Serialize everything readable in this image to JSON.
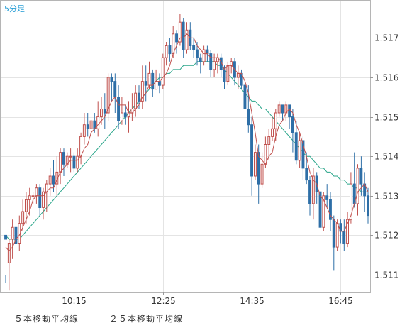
{
  "chart_data": {
    "type": "candlestick",
    "period_label": "5分足",
    "x_tick_labels": [
      "10:15",
      "12:25",
      "14:35",
      "16:45"
    ],
    "y_tick_labels": [
      "1.511",
      "1.512",
      "1.513",
      "1.514",
      "1.515",
      "1.516",
      "1.517"
    ],
    "ylim": [
      1.5106,
      1.5176
    ],
    "grid": true,
    "legend_position": "bottom-left",
    "colors": {
      "up": "#c0504d",
      "down": "#2e6fa7",
      "ma5": "#c0504d",
      "ma25": "#2aa58a"
    },
    "candles": [
      [
        1.512,
        1.5119,
        1.511,
        1.5108
      ],
      [
        1.5113,
        1.5118,
        1.5119,
        1.5106
      ],
      [
        1.5119,
        1.5122,
        1.5124,
        1.5114
      ],
      [
        1.5122,
        1.5118,
        1.5125,
        1.5116
      ],
      [
        1.5118,
        1.5123,
        1.5125,
        1.5116
      ],
      [
        1.5123,
        1.5126,
        1.5129,
        1.5121
      ],
      [
        1.5126,
        1.5129,
        1.5131,
        1.5123
      ],
      [
        1.5129,
        1.513,
        1.5132,
        1.5125
      ],
      [
        1.513,
        1.513,
        1.5131,
        1.5128
      ],
      [
        1.513,
        1.5132,
        1.5133,
        1.5128
      ],
      [
        1.5132,
        1.5127,
        1.5133,
        1.5125
      ],
      [
        1.5127,
        1.5131,
        1.5132,
        1.5124
      ],
      [
        1.5131,
        1.5133,
        1.5134,
        1.5126
      ],
      [
        1.5133,
        1.5135,
        1.5137,
        1.513
      ],
      [
        1.5135,
        1.5133,
        1.5139,
        1.5131
      ],
      [
        1.5133,
        1.5136,
        1.514,
        1.513
      ],
      [
        1.5136,
        1.5141,
        1.5142,
        1.5133
      ],
      [
        1.5141,
        1.5138,
        1.5142,
        1.5135
      ],
      [
        1.5138,
        1.514,
        1.5141,
        1.5137
      ],
      [
        1.514,
        1.514,
        1.5142,
        1.5136
      ],
      [
        1.514,
        1.5137,
        1.5141,
        1.5136
      ],
      [
        1.5137,
        1.514,
        1.5142,
        1.5136
      ],
      [
        1.514,
        1.5145,
        1.5146,
        1.5138
      ],
      [
        1.5145,
        1.5148,
        1.5151,
        1.5143
      ],
      [
        1.5148,
        1.5147,
        1.5151,
        1.5145
      ],
      [
        1.5147,
        1.5149,
        1.515,
        1.5145
      ],
      [
        1.5149,
        1.5147,
        1.5151,
        1.5146
      ],
      [
        1.5147,
        1.515,
        1.5154,
        1.5145
      ],
      [
        1.515,
        1.5152,
        1.5155,
        1.5148
      ],
      [
        1.5152,
        1.5151,
        1.5156,
        1.5147
      ],
      [
        1.5151,
        1.516,
        1.5161,
        1.5149
      ],
      [
        1.516,
        1.5159,
        1.5161,
        1.5154
      ],
      [
        1.5159,
        1.5155,
        1.5161,
        1.5151
      ],
      [
        1.5155,
        1.5149,
        1.5158,
        1.5147
      ],
      [
        1.5149,
        1.5151,
        1.5155,
        1.5148
      ],
      [
        1.5151,
        1.515,
        1.5153,
        1.5148
      ],
      [
        1.515,
        1.5151,
        1.5154,
        1.5146
      ],
      [
        1.5151,
        1.5152,
        1.5156,
        1.5149
      ],
      [
        1.5152,
        1.5156,
        1.5158,
        1.515
      ],
      [
        1.5156,
        1.5154,
        1.5158,
        1.5152
      ],
      [
        1.5154,
        1.5159,
        1.5163,
        1.5152
      ],
      [
        1.5159,
        1.5158,
        1.5163,
        1.5154
      ],
      [
        1.5158,
        1.5161,
        1.5164,
        1.5157
      ],
      [
        1.5161,
        1.5157,
        1.5162,
        1.5155
      ],
      [
        1.5157,
        1.5159,
        1.5162,
        1.5157
      ],
      [
        1.5159,
        1.5158,
        1.5161,
        1.5156
      ],
      [
        1.5158,
        1.5165,
        1.5166,
        1.5157
      ],
      [
        1.5165,
        1.5168,
        1.5169,
        1.5163
      ],
      [
        1.5168,
        1.5166,
        1.517,
        1.5164
      ],
      [
        1.5166,
        1.5171,
        1.5173,
        1.5165
      ],
      [
        1.5171,
        1.5169,
        1.5172,
        1.5166
      ],
      [
        1.5169,
        1.5174,
        1.5176,
        1.5168
      ],
      [
        1.5174,
        1.5167,
        1.5175,
        1.5165
      ],
      [
        1.5167,
        1.5172,
        1.5174,
        1.5166
      ],
      [
        1.5172,
        1.5168,
        1.5174,
        1.5167
      ],
      [
        1.5168,
        1.5167,
        1.517,
        1.5165
      ],
      [
        1.5167,
        1.5165,
        1.5169,
        1.5163
      ],
      [
        1.5165,
        1.5164,
        1.5166,
        1.5161
      ],
      [
        1.5164,
        1.5167,
        1.5168,
        1.5163
      ],
      [
        1.5167,
        1.5166,
        1.5168,
        1.5164
      ],
      [
        1.5166,
        1.5162,
        1.5167,
        1.516
      ],
      [
        1.5162,
        1.5164,
        1.5166,
        1.516
      ],
      [
        1.5164,
        1.5165,
        1.5166,
        1.5161
      ],
      [
        1.5165,
        1.5162,
        1.5166,
        1.516
      ],
      [
        1.5162,
        1.5159,
        1.5163,
        1.5157
      ],
      [
        1.5159,
        1.5163,
        1.5164,
        1.5158
      ],
      [
        1.5163,
        1.5164,
        1.5165,
        1.5161
      ],
      [
        1.5164,
        1.516,
        1.5165,
        1.5158
      ],
      [
        1.516,
        1.5161,
        1.5163,
        1.5157
      ],
      [
        1.5161,
        1.5158,
        1.5162,
        1.5157
      ],
      [
        1.5158,
        1.5152,
        1.5159,
        1.515
      ],
      [
        1.5152,
        1.5148,
        1.5158,
        1.5146
      ],
      [
        1.5148,
        1.5135,
        1.515,
        1.513
      ],
      [
        1.5135,
        1.5141,
        1.5143,
        1.5134
      ],
      [
        1.5141,
        1.5133,
        1.5143,
        1.5128
      ],
      [
        1.5133,
        1.5138,
        1.5141,
        1.5132
      ],
      [
        1.5138,
        1.5143,
        1.5145,
        1.5137
      ],
      [
        1.5143,
        1.5145,
        1.5147,
        1.5139
      ],
      [
        1.5145,
        1.5147,
        1.515,
        1.5144
      ],
      [
        1.5147,
        1.5151,
        1.5152,
        1.5144
      ],
      [
        1.5151,
        1.5153,
        1.5154,
        1.515
      ],
      [
        1.5153,
        1.5151,
        1.5153,
        1.5149
      ],
      [
        1.5151,
        1.5153,
        1.5154,
        1.5149
      ],
      [
        1.5153,
        1.515,
        1.5153,
        1.5147
      ],
      [
        1.515,
        1.5146,
        1.5152,
        1.5141
      ],
      [
        1.5146,
        1.5139,
        1.5149,
        1.5138
      ],
      [
        1.5139,
        1.5144,
        1.5146,
        1.5137
      ],
      [
        1.5144,
        1.5137,
        1.5145,
        1.5134
      ],
      [
        1.5137,
        1.5134,
        1.5141,
        1.5133
      ],
      [
        1.5134,
        1.5128,
        1.5135,
        1.5125
      ],
      [
        1.5128,
        1.5135,
        1.5137,
        1.5124
      ],
      [
        1.5135,
        1.5131,
        1.5136,
        1.5128
      ],
      [
        1.5131,
        1.5122,
        1.5133,
        1.5118
      ],
      [
        1.5122,
        1.513,
        1.5131,
        1.5121
      ],
      [
        1.513,
        1.5129,
        1.5133,
        1.5127
      ],
      [
        1.5129,
        1.5124,
        1.5131,
        1.5121
      ],
      [
        1.5124,
        1.5117,
        1.5125,
        1.5111
      ],
      [
        1.5117,
        1.5123,
        1.5124,
        1.5116
      ],
      [
        1.5123,
        1.5121,
        1.5124,
        1.5118
      ],
      [
        1.5121,
        1.5118,
        1.5124,
        1.5116
      ],
      [
        1.5118,
        1.5124,
        1.5126,
        1.5117
      ],
      [
        1.5124,
        1.5133,
        1.5136,
        1.5123
      ],
      [
        1.5133,
        1.5128,
        1.5141,
        1.5127
      ],
      [
        1.5128,
        1.5137,
        1.5138,
        1.5125
      ],
      [
        1.5137,
        1.5133,
        1.514,
        1.513
      ],
      [
        1.5133,
        1.513,
        1.5136,
        1.5126
      ],
      [
        1.513,
        1.5125,
        1.5132,
        1.5123
      ]
    ],
    "ma5": [
      1.5117,
      1.5116,
      1.5117,
      1.5119,
      1.512,
      1.5122,
      1.5124,
      1.5126,
      1.5129,
      1.513,
      1.513,
      1.513,
      1.5131,
      1.5132,
      1.5132,
      1.5134,
      1.5136,
      1.5137,
      1.5138,
      1.5139,
      1.5139,
      1.5139,
      1.514,
      1.5142,
      1.5143,
      1.5146,
      1.5147,
      1.5148,
      1.5149,
      1.515,
      1.5152,
      1.5154,
      1.5155,
      1.5153,
      1.5153,
      1.5153,
      1.5151,
      1.5151,
      1.5152,
      1.5153,
      1.5155,
      1.5156,
      1.5158,
      1.5158,
      1.5159,
      1.5159,
      1.516,
      1.5161,
      1.5163,
      1.5166,
      1.5168,
      1.517,
      1.517,
      1.5171,
      1.517,
      1.517,
      1.5168,
      1.5167,
      1.5166,
      1.5166,
      1.5165,
      1.5165,
      1.5165,
      1.5164,
      1.5162,
      1.5163,
      1.5163,
      1.5162,
      1.5161,
      1.5161,
      1.5159,
      1.5156,
      1.5151,
      1.5146,
      1.514,
      1.5139,
      1.5138,
      1.514,
      1.5141,
      1.5145,
      1.5148,
      1.5149,
      1.5151,
      1.5152,
      1.5151,
      1.5148,
      1.5146,
      1.5143,
      1.514,
      1.5136,
      1.5134,
      1.5133,
      1.513,
      1.5129,
      1.5127,
      1.5125,
      1.5124,
      1.5123,
      1.5121,
      1.5121,
      1.5123,
      1.5125,
      1.5128,
      1.5131,
      1.5132,
      1.5133,
      1.5131
    ],
    "ma25": [
      1.512,
      1.5119,
      1.5119,
      1.5119,
      1.5119,
      1.512,
      1.5121,
      1.5122,
      1.5123,
      1.5124,
      1.5125,
      1.5126,
      1.5127,
      1.5128,
      1.5129,
      1.513,
      1.5131,
      1.5132,
      1.5133,
      1.5134,
      1.5135,
      1.5136,
      1.5137,
      1.5138,
      1.5139,
      1.514,
      1.5141,
      1.5142,
      1.5143,
      1.5144,
      1.5145,
      1.5146,
      1.5147,
      1.5148,
      1.5149,
      1.515,
      1.5151,
      1.5152,
      1.5153,
      1.5154,
      1.5155,
      1.5156,
      1.5157,
      1.5158,
      1.5159,
      1.516,
      1.516,
      1.5161,
      1.5161,
      1.5162,
      1.5162,
      1.5162,
      1.5163,
      1.5163,
      1.5163,
      1.5163,
      1.5164,
      1.5164,
      1.5164,
      1.5164,
      1.5164,
      1.5164,
      1.5163,
      1.5163,
      1.5162,
      1.5161,
      1.516,
      1.5159,
      1.5158,
      1.5157,
      1.5156,
      1.5155,
      1.5154,
      1.5154,
      1.5153,
      1.5152,
      1.5152,
      1.5151,
      1.515,
      1.5149,
      1.5148,
      1.5147,
      1.5146,
      1.5145,
      1.5144,
      1.5143,
      1.5142,
      1.5141,
      1.514,
      1.514,
      1.5139,
      1.5138,
      1.5137,
      1.5137,
      1.5136,
      1.5136,
      1.5135,
      1.5135,
      1.5134,
      1.5134,
      1.5133,
      1.5133,
      1.5132,
      1.5132,
      1.5131,
      1.5131,
      1.5131
    ],
    "legend": [
      "５本移動平均線",
      "２５本移動平均線"
    ]
  }
}
